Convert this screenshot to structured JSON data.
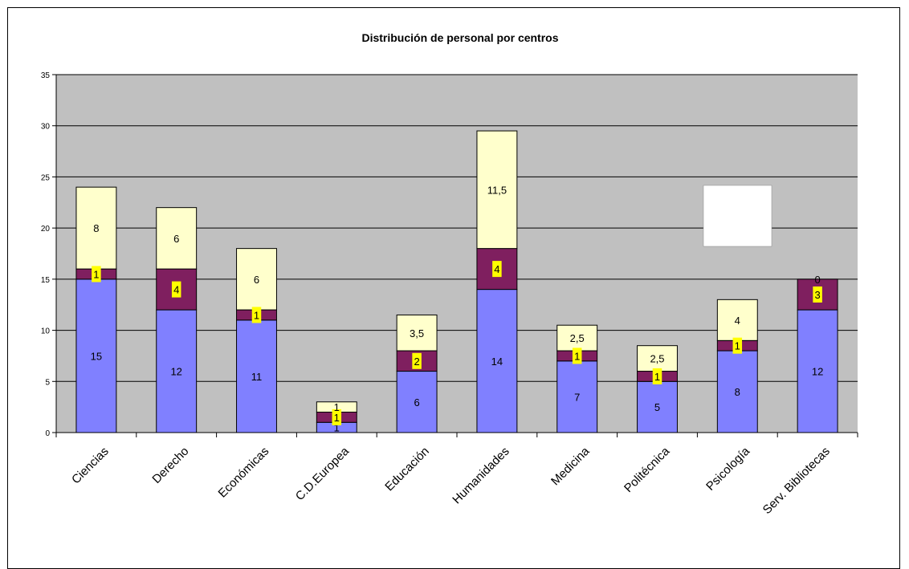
{
  "chart_data": {
    "type": "bar",
    "stacked": true,
    "title": "Distribución de personal por centros",
    "categories": [
      "Ciencias",
      "Derecho",
      "Económicas",
      "C.D.Europea",
      "Educación",
      "Humanidades",
      "Medicina",
      "Politécnica",
      "Psicología",
      "Serv. Bibliotecas"
    ],
    "series": [
      {
        "values": [
          15,
          12,
          11,
          1,
          6,
          14,
          7,
          5,
          8,
          12
        ],
        "labels": [
          "15",
          "12",
          "11",
          "1",
          "6",
          "14",
          "7",
          "5",
          "8",
          "12"
        ],
        "color": "#8080ff",
        "label_highlight": false
      },
      {
        "values": [
          1,
          4,
          1,
          1,
          2,
          4,
          1,
          1,
          1,
          3
        ],
        "labels": [
          "1",
          "4",
          "1",
          "1",
          "2",
          "4",
          "1",
          "1",
          "1",
          "3"
        ],
        "color": "#7f1f5f",
        "label_highlight": true
      },
      {
        "values": [
          8,
          6,
          6,
          1,
          3.5,
          11.5,
          2.5,
          2.5,
          4,
          0
        ],
        "labels": [
          "8",
          "6",
          "6",
          "1",
          "3,5",
          "11,5",
          "2,5",
          "2,5",
          "4",
          "0"
        ],
        "color": "#ffffcc",
        "label_highlight": false
      }
    ],
    "ylim": [
      0,
      35
    ],
    "yticks": [
      0,
      5,
      10,
      15,
      20,
      25,
      30,
      35
    ],
    "grid": true,
    "plot_background": "#c0c0c0",
    "label_highlight_color": "#ffff00",
    "legend": "none"
  }
}
